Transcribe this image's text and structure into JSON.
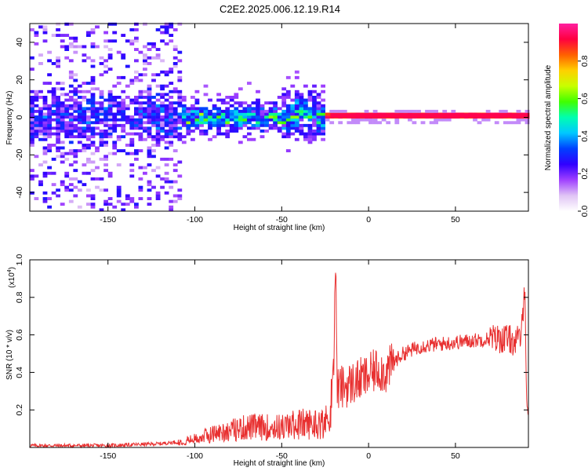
{
  "title": "C2E2.2025.006.12.19.R14",
  "colors": {
    "snr_line": "#e83030",
    "axis": "#000000",
    "spectrogram_low": "#d9b8f2",
    "spectrogram_mid": "#5a00e0",
    "spectrogram_high": "#ff2060"
  },
  "chart_data": [
    {
      "type": "heatmap",
      "name": "spectrogram",
      "xlabel": "Height of straight line (km)",
      "ylabel": "Frequency (Hz)",
      "xlim": [
        -195,
        92
      ],
      "ylim": [
        -50,
        50
      ],
      "xticks": [
        -150,
        -100,
        -50,
        0,
        50
      ],
      "yticks": [
        -40,
        -20,
        0,
        20,
        40
      ],
      "colorbar": {
        "label": "Normalized spectral amplitude",
        "range": [
          0.0,
          1.0
        ],
        "ticks": [
          0.0,
          0.2,
          0.4,
          0.6,
          0.8
        ],
        "colormap": [
          "#ffffff",
          "#e0c4f5",
          "#9f40ff",
          "#3000ff",
          "#0040ff",
          "#00c8ff",
          "#00ffb0",
          "#40ff00",
          "#c8ff00",
          "#ffd000",
          "#ff6000",
          "#ff0040",
          "#ff20a0"
        ]
      },
      "regions": [
        {
          "x_range": [
            -195,
            -108
          ],
          "description": "broadband scatter",
          "spread_hz": 50,
          "core_spread_hz": 12,
          "amplitude": 0.3
        },
        {
          "x_range": [
            -108,
            -25
          ],
          "description": "band near 0 Hz",
          "spread_hz": 8,
          "amplitude": 0.5
        },
        {
          "x_range": [
            -22,
            92
          ],
          "description": "narrow line at ~1 Hz",
          "center_hz": 1,
          "amplitude": 0.95
        }
      ]
    },
    {
      "type": "line",
      "name": "snr",
      "xlabel": "Height of straight line (km)",
      "ylabel": "SNR (10 * v/v)",
      "yscale_label": "(x10",
      "yscale_exponent": "4",
      "xlim": [
        -195,
        92
      ],
      "ylim": [
        0,
        1.0
      ],
      "xticks": [
        -150,
        -100,
        -50,
        0,
        50
      ],
      "yticks": [
        0.2,
        0.4,
        0.6,
        0.8,
        1.0
      ],
      "ytick_labels": [
        "0.2",
        "0.4",
        "0.6",
        "0.8",
        "1.0"
      ],
      "x": [
        -195,
        -150,
        -120,
        -110,
        -100,
        -90,
        -80,
        -70,
        -60,
        -50,
        -40,
        -30,
        -25,
        -22,
        -20,
        -19,
        -18,
        -17,
        -15,
        -10,
        -5,
        0,
        5,
        10,
        15,
        20,
        30,
        40,
        50,
        60,
        70,
        75,
        80,
        85,
        88,
        90,
        91
      ],
      "y": [
        0.01,
        0.01,
        0.02,
        0.03,
        0.05,
        0.08,
        0.1,
        0.12,
        0.12,
        0.12,
        0.14,
        0.14,
        0.15,
        0.18,
        0.5,
        1.0,
        0.3,
        0.32,
        0.32,
        0.34,
        0.36,
        0.38,
        0.42,
        0.4,
        0.46,
        0.5,
        0.54,
        0.55,
        0.56,
        0.57,
        0.58,
        0.58,
        0.58,
        0.56,
        0.6,
        0.9,
        0.2
      ]
    }
  ]
}
